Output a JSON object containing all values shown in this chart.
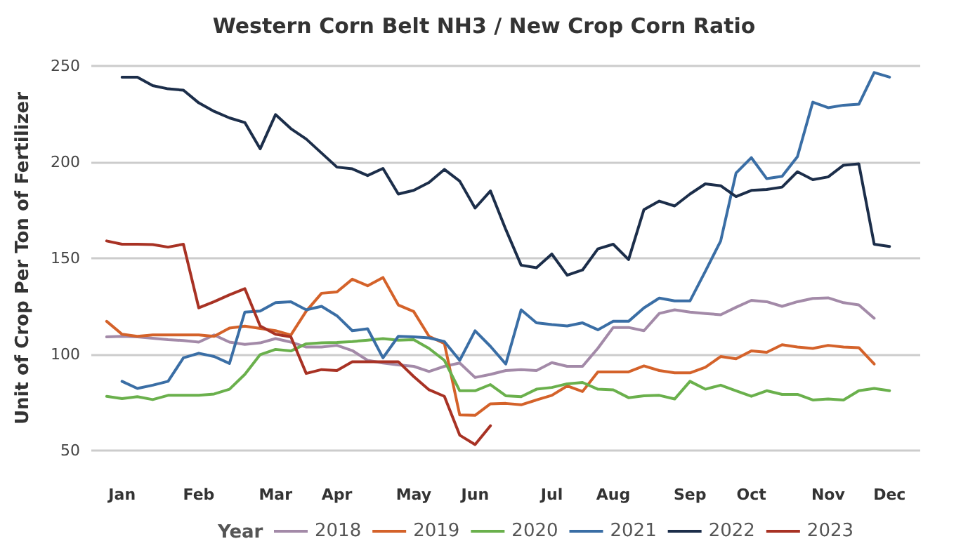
{
  "chart_data": {
    "type": "line",
    "title": "Western Corn Belt NH3 / New Crop Corn Ratio",
    "ylabel": "Unit of Crop Per Ton of Fertilizer",
    "legend_title": "Year",
    "legend": "bottom",
    "grid": "y",
    "marker": "none",
    "line_style": "solid",
    "categories": [
      null,
      null,
      "Jan",
      null,
      null,
      null,
      null,
      "Feb",
      null,
      null,
      null,
      null,
      "Mar",
      null,
      null,
      null,
      "Apr",
      null,
      null,
      null,
      null,
      "May",
      null,
      null,
      null,
      "Jun",
      null,
      null,
      null,
      null,
      "Jul",
      null,
      null,
      null,
      "Aug",
      null,
      null,
      null,
      null,
      "Sep",
      null,
      null,
      null,
      "Oct",
      null,
      null,
      null,
      null,
      "Nov",
      null,
      null,
      null,
      "Dec",
      null,
      null
    ],
    "ylim": [
      50,
      250
    ],
    "yticks": [
      50,
      100,
      150,
      200,
      250
    ],
    "series": [
      {
        "name": "2018",
        "color": "#a38aa8",
        "values": [
          null,
          109.1,
          109.4,
          109.1,
          108.4,
          107.7,
          107.2,
          106.4,
          110.1,
          106.4,
          105.2,
          106,
          108.2,
          106.4,
          103.8,
          103.8,
          104.7,
          102,
          96.9,
          95.5,
          94.5,
          93.8,
          91.1,
          93.8,
          95.5,
          88,
          89.6,
          91.6,
          92.1,
          91.6,
          95.7,
          93.8,
          93.8,
          103.2,
          114,
          114,
          112.3,
          121.3,
          123.2,
          122,
          121.3,
          120.6,
          124.5,
          128.1,
          127.4,
          125,
          127.4,
          129.1,
          129.4,
          126.9,
          125.7,
          118.8,
          null,
          null,
          null
        ]
      },
      {
        "name": "2019",
        "color": "#d4622a",
        "values": [
          null,
          117.2,
          110.5,
          109.4,
          110.1,
          110.1,
          110.1,
          110.1,
          109.4,
          113.7,
          114.7,
          113.5,
          112.3,
          110.1,
          122.5,
          131.8,
          132.5,
          139.1,
          135.7,
          140,
          125.7,
          122.3,
          109.4,
          105.7,
          68.5,
          68.3,
          74.3,
          74.5,
          73.8,
          76.3,
          78.7,
          83.6,
          80.7,
          90.9,
          90.9,
          90.9,
          94,
          91.6,
          90.4,
          90.4,
          93.3,
          98.9,
          97.7,
          101.8,
          101.1,
          105,
          103.8,
          103.1,
          104.7,
          103.8,
          103.5,
          95,
          null,
          null,
          null
        ]
      },
      {
        "name": "2020",
        "color": "#6ab04c",
        "values": [
          null,
          78.2,
          77,
          78,
          76.5,
          78.7,
          78.7,
          78.7,
          79.4,
          81.9,
          89.6,
          99.9,
          102.6,
          101.8,
          105.5,
          106,
          106.2,
          106.7,
          107.4,
          108.2,
          107.4,
          107.7,
          103.1,
          96.9,
          81.1,
          81.1,
          84.3,
          78.5,
          78,
          81.9,
          82.8,
          84.7,
          85.4,
          81.9,
          81.6,
          77.5,
          78.5,
          78.7,
          76.8,
          86,
          81.9,
          84,
          81.1,
          78.2,
          81.1,
          79.2,
          79.2,
          76.3,
          76.8,
          76.3,
          81.1,
          82.3,
          81.1,
          null,
          null
        ]
      },
      {
        "name": "2021",
        "color": "#3a6ea5",
        "values": [
          null,
          null,
          86,
          82.3,
          84,
          86,
          98.2,
          100.6,
          98.9,
          95.3,
          122,
          122.5,
          126.9,
          127.4,
          123.2,
          125,
          120.1,
          112.3,
          113.3,
          98.2,
          109.4,
          109.1,
          108.6,
          106.7,
          96.9,
          112.3,
          104.2,
          95,
          123.2,
          116.4,
          115.5,
          114.8,
          116.4,
          112.8,
          117.2,
          117.2,
          124.2,
          129.3,
          127.8,
          127.8,
          143.2,
          159,
          194.3,
          202.3,
          191.4,
          192.6,
          202.8,
          231.2,
          228.3,
          229.6,
          230.1,
          246.6,
          244.2,
          null,
          null
        ]
      },
      {
        "name": "2022",
        "color": "#1c2e4a",
        "values": [
          null,
          null,
          244.2,
          244.2,
          239.8,
          238.1,
          237.4,
          230.8,
          226.4,
          223,
          220.6,
          206.9,
          224.7,
          217.4,
          212,
          204.7,
          197.4,
          196.5,
          193,
          196.7,
          183.4,
          185.3,
          189.4,
          196.2,
          190.1,
          176.1,
          185,
          165,
          146.4,
          145.1,
          152.2,
          141.2,
          143.9,
          154.9,
          157.3,
          149.3,
          175.3,
          179.7,
          177.2,
          183.4,
          188.7,
          187.7,
          182.1,
          185.3,
          185.8,
          187,
          195,
          190.9,
          192.3,
          198.4,
          199.1,
          157.3,
          156.1,
          null,
          null
        ]
      },
      {
        "name": "2023",
        "color": "#a83224",
        "values": [
          null,
          159,
          157.3,
          157.3,
          157.1,
          155.8,
          157.3,
          124.2,
          127.4,
          131,
          134.2,
          114.8,
          110.5,
          109.1,
          90.1,
          92.1,
          91.6,
          96.2,
          96.2,
          96.2,
          96.2,
          88.5,
          81.6,
          78.2,
          58,
          53.1,
          62.9,
          null,
          null,
          null,
          null,
          null,
          null,
          null,
          null,
          null,
          null,
          null,
          null,
          null,
          null,
          null,
          null,
          null,
          null,
          null,
          null,
          null,
          null,
          null,
          null,
          null,
          null,
          null,
          null
        ]
      }
    ]
  }
}
